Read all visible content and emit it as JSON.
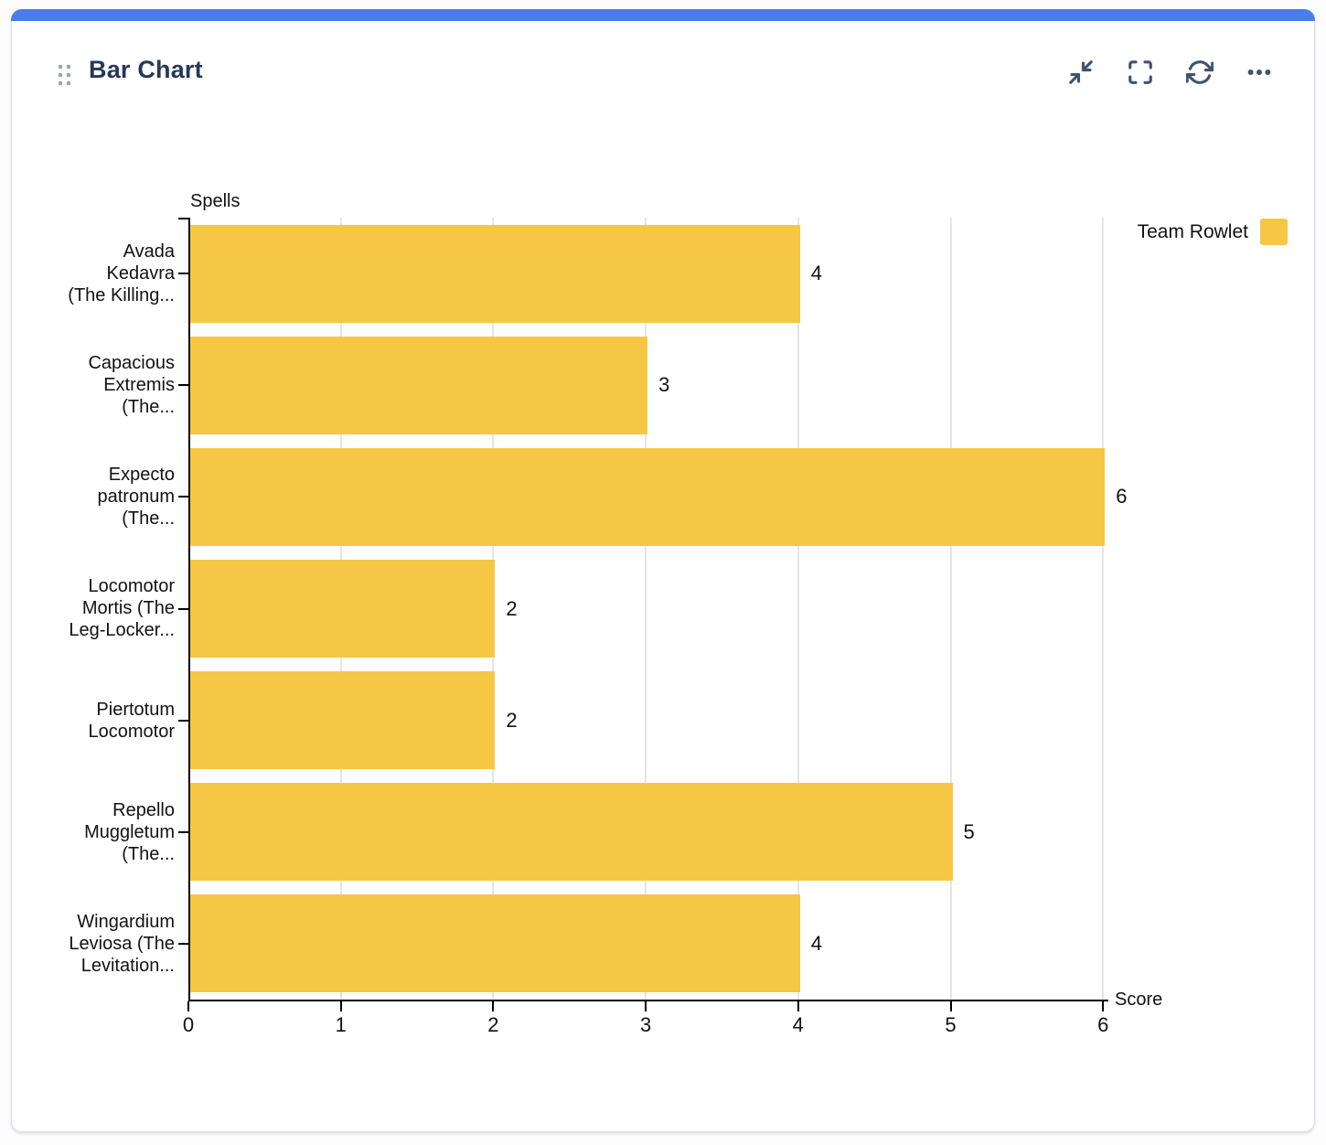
{
  "card": {
    "title": "Bar Chart",
    "accent_color": "#4A7CEC",
    "toolbar_icons": [
      "collapse",
      "fullscreen",
      "refresh",
      "more"
    ]
  },
  "chart_data": {
    "type": "bar",
    "orientation": "horizontal",
    "xlabel": "Score",
    "ylabel": "Spells",
    "xlim": [
      0,
      6
    ],
    "x_ticks": [
      0,
      1,
      2,
      3,
      4,
      5,
      6
    ],
    "grid": true,
    "legend": {
      "position": "top-right",
      "entries": [
        {
          "label": "Team Rowlet",
          "color": "#F6C645"
        }
      ]
    },
    "categories": [
      "Avada Kedavra (The Killing...",
      "Capacious Extremis (The...",
      "Expecto patronum (The...",
      "Locomotor Mortis (The Leg-Locker...",
      "Piertotum Locomotor",
      "Repello Muggletum (The...",
      "Wingardium Leviosa (The Levitation..."
    ],
    "category_label_lines": [
      [
        "Avada",
        "Kedavra",
        "(The Killing..."
      ],
      [
        "Capacious",
        "Extremis",
        "(The..."
      ],
      [
        "Expecto",
        "patronum",
        "(The..."
      ],
      [
        "Locomotor",
        "Mortis (The",
        "Leg-Locker..."
      ],
      [
        "Piertotum",
        "Locomotor"
      ],
      [
        "Repello",
        "Muggletum",
        "(The..."
      ],
      [
        "Wingardium",
        "Leviosa (The",
        "Levitation..."
      ]
    ],
    "series": [
      {
        "name": "Team Rowlet",
        "color": "#F6C645",
        "values": [
          4,
          3,
          6,
          2,
          2,
          5,
          4
        ]
      }
    ]
  }
}
